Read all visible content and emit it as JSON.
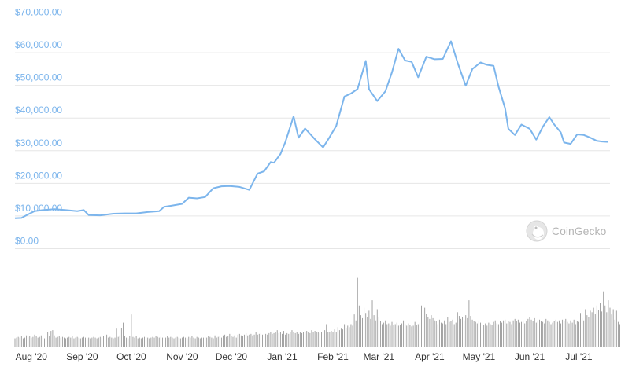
{
  "chart_data": [
    {
      "type": "line",
      "series": [
        {
          "color": "#7cb5ec",
          "x": [
            "2020-07-22",
            "2020-07-26",
            "2020-07-30",
            "2020-08-03",
            "2020-08-08",
            "2020-08-15",
            "2020-08-22",
            "2020-08-29",
            "2020-09-02",
            "2020-09-05",
            "2020-09-12",
            "2020-09-20",
            "2020-09-27",
            "2020-10-04",
            "2020-10-11",
            "2020-10-18",
            "2020-10-21",
            "2020-10-25",
            "2020-11-01",
            "2020-11-05",
            "2020-11-10",
            "2020-11-15",
            "2020-11-20",
            "2020-11-25",
            "2020-11-30",
            "2020-12-06",
            "2020-12-12",
            "2020-12-17",
            "2020-12-21",
            "2020-12-25",
            "2020-12-27",
            "2020-12-31",
            "2021-01-03",
            "2021-01-08",
            "2021-01-11",
            "2021-01-15",
            "2021-01-21",
            "2021-01-26",
            "2021-01-30",
            "2021-02-03",
            "2021-02-08",
            "2021-02-12",
            "2021-02-16",
            "2021-02-21",
            "2021-02-23",
            "2021-02-28",
            "2021-03-05",
            "2021-03-09",
            "2021-03-13",
            "2021-03-17",
            "2021-03-21",
            "2021-03-25",
            "2021-03-30",
            "2021-04-04",
            "2021-04-09",
            "2021-04-14",
            "2021-04-18",
            "2021-04-23",
            "2021-04-27",
            "2021-05-02",
            "2021-05-06",
            "2021-05-10",
            "2021-05-13",
            "2021-05-17",
            "2021-05-19",
            "2021-05-23",
            "2021-05-27",
            "2021-06-01",
            "2021-06-05",
            "2021-06-09",
            "2021-06-13",
            "2021-06-16",
            "2021-06-20",
            "2021-06-22",
            "2021-06-26",
            "2021-06-30",
            "2021-07-04",
            "2021-07-08",
            "2021-07-12",
            "2021-07-15",
            "2021-07-19"
          ],
          "y": [
            9300,
            9400,
            10500,
            11500,
            11800,
            12100,
            11800,
            11500,
            11800,
            10300,
            10200,
            10700,
            10800,
            10800,
            11200,
            11500,
            12800,
            13100,
            13700,
            15600,
            15400,
            15800,
            18500,
            19100,
            19200,
            18900,
            18000,
            23000,
            23700,
            26500,
            26300,
            29000,
            32700,
            40500,
            34000,
            36800,
            33500,
            31000,
            34200,
            37600,
            46600,
            47500,
            48900,
            57500,
            48800,
            45200,
            48200,
            54000,
            61200,
            57600,
            57200,
            52500,
            58800,
            58000,
            58100,
            63500,
            57000,
            49900,
            55000,
            57000,
            56300,
            56000,
            49600,
            43000,
            36700,
            34800,
            38000,
            36700,
            33400,
            37300,
            40300,
            38000,
            35600,
            32500,
            32100,
            35000,
            34800,
            34000,
            33000,
            32800,
            32700
          ]
        }
      ],
      "yticks": [
        "$0.00",
        "$10,000.00",
        "$20,000.00",
        "$30,000.00",
        "$40,000.00",
        "$50,000.00",
        "$60,000.00",
        "$70,000.00"
      ],
      "ylim": [
        0,
        70000
      ],
      "xticks": [
        {
          "label": "Aug '20",
          "date": "2020-08-01"
        },
        {
          "label": "Sep '20",
          "date": "2020-09-01"
        },
        {
          "label": "Oct '20",
          "date": "2020-10-01"
        },
        {
          "label": "Nov '20",
          "date": "2020-11-01"
        },
        {
          "label": "Dec '20",
          "date": "2020-12-01"
        },
        {
          "label": "Jan '21",
          "date": "2021-01-01"
        },
        {
          "label": "Feb '21",
          "date": "2021-02-01"
        },
        {
          "label": "Mar '21",
          "date": "2021-03-01"
        },
        {
          "label": "Apr '21",
          "date": "2021-04-01"
        },
        {
          "label": "May '21",
          "date": "2021-05-01"
        },
        {
          "label": "Jun '21",
          "date": "2021-06-01"
        },
        {
          "label": "Jul '21",
          "date": "2021-07-01"
        }
      ],
      "grid": true
    },
    {
      "type": "bar",
      "series": [
        {
          "color": "#999999",
          "start_date": "2020-07-22",
          "values": [
            0.11,
            0.12,
            0.13,
            0.12,
            0.14,
            0.11,
            0.12,
            0.15,
            0.13,
            0.14,
            0.12,
            0.13,
            0.16,
            0.14,
            0.12,
            0.13,
            0.15,
            0.12,
            0.11,
            0.12,
            0.19,
            0.14,
            0.21,
            0.22,
            0.15,
            0.12,
            0.13,
            0.14,
            0.12,
            0.13,
            0.12,
            0.11,
            0.12,
            0.13,
            0.12,
            0.14,
            0.11,
            0.12,
            0.13,
            0.12,
            0.11,
            0.12,
            0.13,
            0.12,
            0.11,
            0.12,
            0.11,
            0.12,
            0.13,
            0.12,
            0.11,
            0.12,
            0.13,
            0.12,
            0.14,
            0.13,
            0.16,
            0.12,
            0.13,
            0.12,
            0.11,
            0.12,
            0.24,
            0.13,
            0.15,
            0.25,
            0.32,
            0.14,
            0.12,
            0.11,
            0.14,
            0.43,
            0.13,
            0.12,
            0.14,
            0.11,
            0.12,
            0.11,
            0.12,
            0.13,
            0.12,
            0.12,
            0.11,
            0.12,
            0.13,
            0.12,
            0.14,
            0.13,
            0.12,
            0.13,
            0.12,
            0.11,
            0.12,
            0.14,
            0.12,
            0.13,
            0.12,
            0.11,
            0.12,
            0.13,
            0.12,
            0.11,
            0.12,
            0.13,
            0.12,
            0.11,
            0.13,
            0.12,
            0.14,
            0.12,
            0.11,
            0.13,
            0.12,
            0.11,
            0.12,
            0.12,
            0.13,
            0.12,
            0.14,
            0.13,
            0.12,
            0.11,
            0.15,
            0.12,
            0.13,
            0.14,
            0.12,
            0.15,
            0.16,
            0.13,
            0.14,
            0.17,
            0.14,
            0.13,
            0.15,
            0.12,
            0.16,
            0.17,
            0.15,
            0.14,
            0.16,
            0.18,
            0.15,
            0.16,
            0.17,
            0.15,
            0.16,
            0.19,
            0.16,
            0.17,
            0.18,
            0.16,
            0.15,
            0.17,
            0.16,
            0.18,
            0.2,
            0.17,
            0.18,
            0.19,
            0.22,
            0.18,
            0.19,
            0.17,
            0.21,
            0.16,
            0.18,
            0.17,
            0.19,
            0.22,
            0.19,
            0.18,
            0.2,
            0.17,
            0.19,
            0.18,
            0.2,
            0.19,
            0.21,
            0.2,
            0.18,
            0.22,
            0.19,
            0.21,
            0.2,
            0.19,
            0.18,
            0.2,
            0.19,
            0.22,
            0.3,
            0.2,
            0.19,
            0.21,
            0.2,
            0.23,
            0.19,
            0.26,
            0.22,
            0.24,
            0.23,
            0.3,
            0.25,
            0.28,
            0.26,
            0.3,
            0.28,
            0.43,
            0.35,
            0.92,
            0.55,
            0.42,
            0.38,
            0.52,
            0.45,
            0.4,
            0.48,
            0.37,
            0.62,
            0.42,
            0.35,
            0.5,
            0.39,
            0.34,
            0.3,
            0.32,
            0.35,
            0.3,
            0.31,
            0.28,
            0.33,
            0.29,
            0.3,
            0.32,
            0.28,
            0.29,
            0.31,
            0.35,
            0.3,
            0.28,
            0.31,
            0.29,
            0.27,
            0.28,
            0.33,
            0.29,
            0.3,
            0.32,
            0.55,
            0.48,
            0.52,
            0.44,
            0.4,
            0.37,
            0.42,
            0.38,
            0.35,
            0.34,
            0.3,
            0.36,
            0.32,
            0.31,
            0.35,
            0.3,
            0.39,
            0.33,
            0.34,
            0.36,
            0.3,
            0.32,
            0.46,
            0.41,
            0.37,
            0.39,
            0.35,
            0.42,
            0.38,
            0.62,
            0.41,
            0.36,
            0.34,
            0.33,
            0.31,
            0.35,
            0.32,
            0.3,
            0.29,
            0.31,
            0.28,
            0.32,
            0.3,
            0.29,
            0.33,
            0.35,
            0.31,
            0.3,
            0.34,
            0.32,
            0.35,
            0.36,
            0.31,
            0.34,
            0.33,
            0.3,
            0.35,
            0.37,
            0.34,
            0.36,
            0.32,
            0.33,
            0.35,
            0.31,
            0.34,
            0.37,
            0.4,
            0.36,
            0.34,
            0.38,
            0.32,
            0.35,
            0.36,
            0.34,
            0.33,
            0.31,
            0.37,
            0.35,
            0.33,
            0.3,
            0.32,
            0.34,
            0.36,
            0.33,
            0.35,
            0.31,
            0.36,
            0.34,
            0.37,
            0.33,
            0.31,
            0.35,
            0.32,
            0.36,
            0.3,
            0.34,
            0.33,
            0.45,
            0.38,
            0.35,
            0.5,
            0.42,
            0.4,
            0.48,
            0.46,
            0.52,
            0.44,
            0.55,
            0.49,
            0.58,
            0.47,
            0.74,
            0.55,
            0.46,
            0.62,
            0.52,
            0.43,
            0.5,
            0.36,
            0.48,
            0.33,
            0.3,
            0.32,
            0.28,
            0.33,
            0.3,
            0.29,
            0.31,
            0.32,
            0.28,
            0.27,
            0.3,
            0.26,
            0.28,
            0.3,
            0.24,
            0.27,
            0.26,
            0.28,
            0.3,
            0.24,
            0.26,
            0.23,
            0.25,
            0.22,
            0.24,
            0.26,
            0.25,
            0.23,
            0.24,
            0.22,
            0.25,
            0.23,
            0.28,
            0.3,
            0.26,
            0.24,
            0.25,
            0.22,
            0.24,
            0.23,
            0.21,
            0.22,
            0.24,
            0.21,
            0.2,
            0.22,
            0.21,
            0.23,
            0.25,
            0.22,
            0.24,
            0.3,
            0.26,
            0.23,
            0.21,
            0.2,
            0.22,
            0.19,
            0.21,
            0.2,
            0.22,
            0.19,
            0.2,
            0.18,
            0.2,
            0.19,
            0.21,
            0.19,
            0.2,
            0.18,
            0.2,
            0.19
          ]
        }
      ]
    }
  ],
  "watermark": {
    "text": "CoinGecko",
    "icon": "gecko-logo-icon"
  }
}
